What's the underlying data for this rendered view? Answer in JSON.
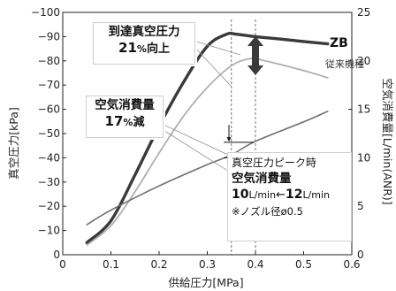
{
  "chart_data": {
    "type": "line",
    "xlabel": "供給圧力[MPa]",
    "ylabel_left": "真空圧力[kPa]",
    "ylabel_right": "空気消費量[L/min(ANR)]",
    "xlim": [
      0,
      0.6
    ],
    "ylim_left": [
      0,
      -100
    ],
    "ylim_right": [
      0,
      25
    ],
    "x_ticks": [
      "0",
      "0.1",
      "0.2",
      "0.3",
      "0.4",
      "0.5",
      "0.6"
    ],
    "x_tick_values": [
      0,
      0.1,
      0.2,
      0.3,
      0.4,
      0.5,
      0.6
    ],
    "y_left_ticks": [
      "−100",
      "−90",
      "−80",
      "−70",
      "−60",
      "−50",
      "−40",
      "−30",
      "−20",
      "−10",
      "0"
    ],
    "y_left_tick_values": [
      -100,
      -90,
      -80,
      -70,
      -60,
      -50,
      -40,
      -30,
      -20,
      -10,
      0
    ],
    "y_right_ticks": [
      "25",
      "20",
      "15",
      "10",
      "5",
      "0"
    ],
    "y_right_tick_values": [
      25,
      20,
      15,
      10,
      5,
      0
    ],
    "grid": false,
    "series": [
      {
        "name": "ZB",
        "axis": "left",
        "color": "#3a3a3a",
        "x": [
          0.05,
          0.1,
          0.15,
          0.2,
          0.25,
          0.3,
          0.34,
          0.36,
          0.4,
          0.45,
          0.5,
          0.55
        ],
        "y": [
          -5,
          -14,
          -33,
          -53,
          -71,
          -86,
          -91,
          -91,
          -90,
          -89,
          -88,
          -87
        ]
      },
      {
        "name": "従来機種",
        "axis": "left",
        "color": "#b0b0b0",
        "x": [
          0.05,
          0.1,
          0.15,
          0.2,
          0.25,
          0.3,
          0.35,
          0.39,
          0.42,
          0.5,
          0.55
        ],
        "y": [
          -4,
          -12,
          -26,
          -42,
          -57,
          -69,
          -78,
          -81,
          -80,
          -76,
          -73
        ]
      },
      {
        "name": "",
        "axis": "right",
        "color": "#6e6e6e",
        "x": [
          0.05,
          0.1,
          0.2,
          0.3,
          0.35,
          0.4,
          0.5,
          0.55
        ],
        "y": [
          3.1,
          4.6,
          7.1,
          9.3,
          10.3,
          11.7,
          13.7,
          14.8
        ]
      }
    ],
    "reference_lines_x": [
      0.35,
      0.4
    ],
    "annotations": {
      "vacuum_title": "到達真空圧力",
      "vacuum_value": "21",
      "vacuum_unit": "%",
      "vacuum_suffix": "向上",
      "air_title": "空気消費量",
      "air_value": "17",
      "air_unit": "%",
      "air_suffix": "減",
      "info_line1": "真空圧力ピーク時",
      "info_line2": "空気消費量",
      "info_from_value": "10",
      "info_from_unit": "L/min",
      "info_arrow": "←",
      "info_to_value": "12",
      "info_to_unit": "L/min",
      "info_note": "※ノズル径ø0.5"
    },
    "labels": {
      "zb": "ZB",
      "conventional": "従来機種"
    }
  }
}
